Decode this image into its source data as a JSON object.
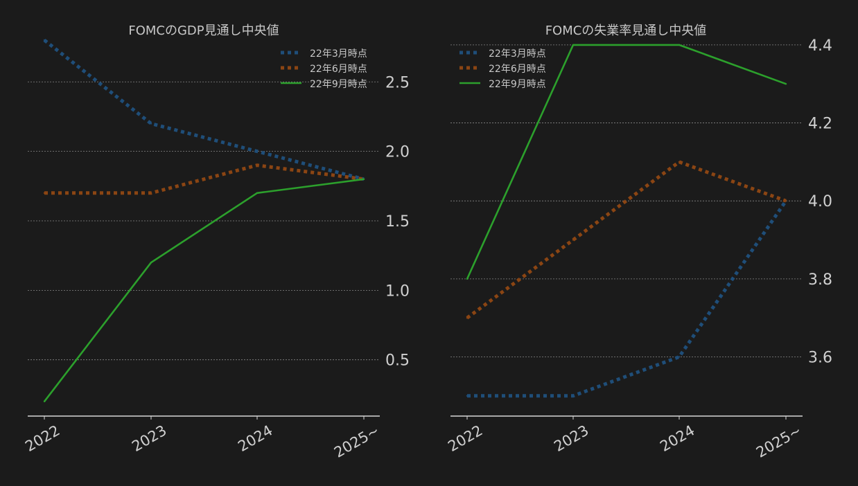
{
  "chart_data": [
    {
      "type": "line",
      "title": "FOMCのGDP見通し中央値",
      "categories": [
        "2022",
        "2023",
        "2024",
        "2025~"
      ],
      "ylim": [
        0.1,
        2.85
      ],
      "yticks": [
        0.5,
        1.0,
        1.5,
        2.0,
        2.5
      ],
      "ytick_labels": [
        "0.5",
        "1.0",
        "1.5",
        "2.0",
        "2.5"
      ],
      "y_axis_side": "right",
      "grid": true,
      "legend_position": "top-right",
      "series": [
        {
          "name": "22年3月時点",
          "values": [
            2.8,
            2.2,
            2.0,
            1.8
          ],
          "color": "#1f4e79",
          "style": "dotted"
        },
        {
          "name": "22年6月時点",
          "values": [
            1.7,
            1.7,
            1.9,
            1.8
          ],
          "color": "#8b4513",
          "style": "dotted"
        },
        {
          "name": "22年9月時点",
          "values": [
            0.2,
            1.2,
            1.7,
            1.8
          ],
          "color": "#2ca02c",
          "style": "solid"
        }
      ]
    },
    {
      "type": "line",
      "title": "FOMCの失業率見通し中央値",
      "categories": [
        "2022",
        "2023",
        "2024",
        "2025~"
      ],
      "ylim": [
        3.45,
        4.43
      ],
      "yticks": [
        3.6,
        3.8,
        4.0,
        4.2,
        4.4
      ],
      "ytick_labels": [
        "3.6",
        "3.8",
        "4.0",
        "4.2",
        "4.4"
      ],
      "y_axis_side": "right",
      "grid": true,
      "legend_position": "top-left",
      "series": [
        {
          "name": "22年3月時点",
          "values": [
            3.5,
            3.5,
            3.6,
            4.0
          ],
          "color": "#1f4e79",
          "style": "dotted"
        },
        {
          "name": "22年6月時点",
          "values": [
            3.7,
            3.9,
            4.1,
            4.0
          ],
          "color": "#8b4513",
          "style": "dotted"
        },
        {
          "name": "22年9月時点",
          "values": [
            3.8,
            4.4,
            4.4,
            4.3
          ],
          "color": "#2ca02c",
          "style": "solid"
        }
      ]
    }
  ]
}
